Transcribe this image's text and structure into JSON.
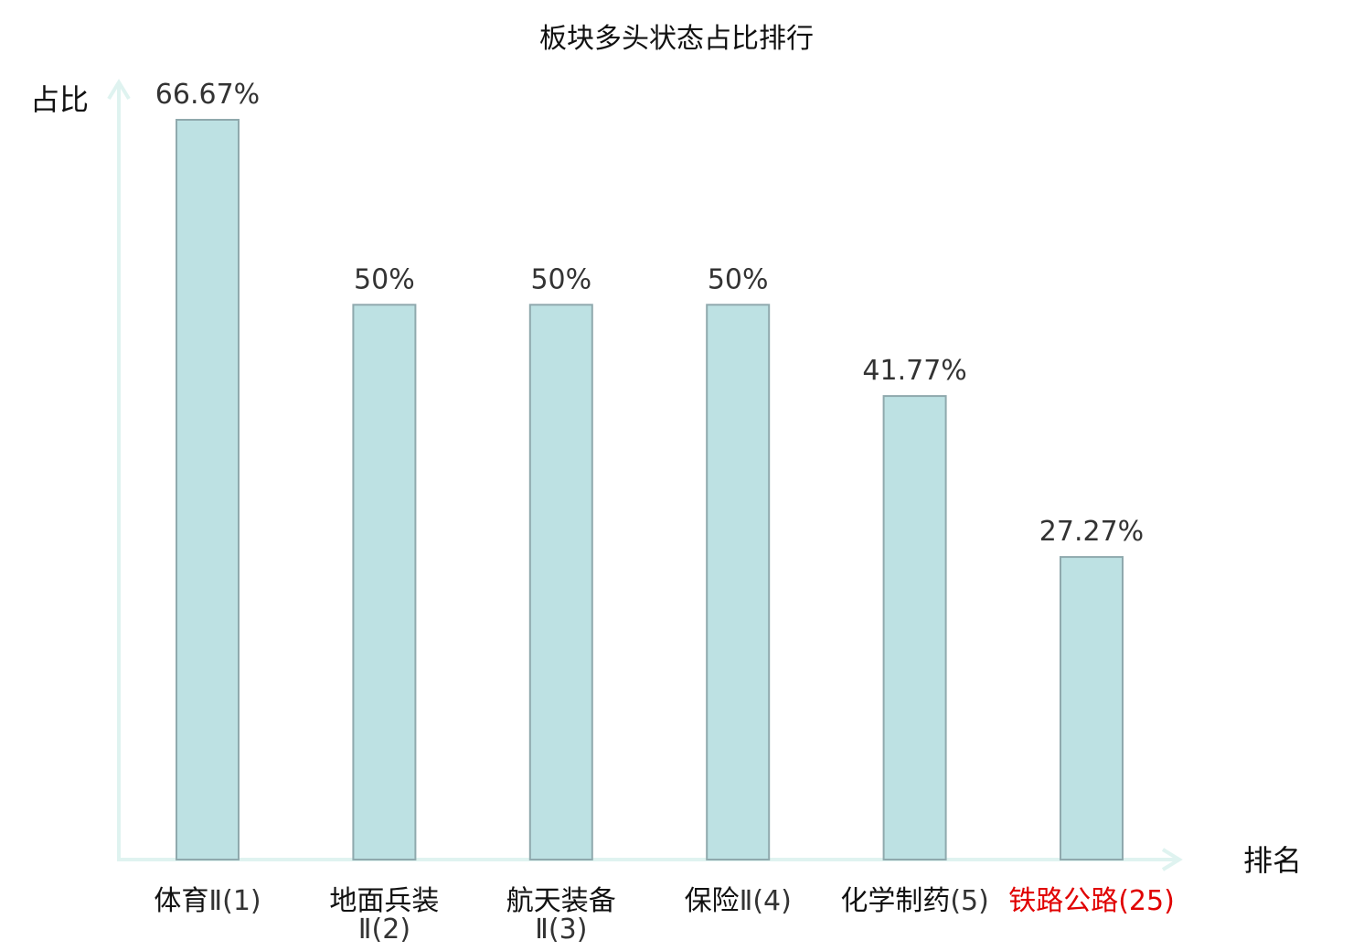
{
  "chart_data": {
    "type": "bar",
    "title": "板块多头状态占比排行",
    "ylabel": "占比",
    "xlabel": "排名",
    "ylim": [
      0,
      66.67
    ],
    "grid": false,
    "legend": "none",
    "colors": {
      "bar_fill": "#bde1e3",
      "bar_stroke": "#8fa9ad",
      "axis": "#dff3f0",
      "highlight": "#e00000"
    },
    "value_labels": [
      "66.67%",
      "50%",
      "50%",
      "50%",
      "41.77%",
      "27.27%"
    ],
    "categories": [
      {
        "line1_main": "体育",
        "line1_suffix": "Ⅱ(1)",
        "line2": "",
        "highlight": false
      },
      {
        "line1_main": "地面兵装",
        "line1_suffix": "",
        "line2": "Ⅱ(2)",
        "highlight": false
      },
      {
        "line1_main": "航天装备",
        "line1_suffix": "",
        "line2": "Ⅱ(3)",
        "highlight": false
      },
      {
        "line1_main": "保险",
        "line1_suffix": "Ⅱ(4)",
        "line2": "",
        "highlight": false
      },
      {
        "line1_main": "化学制药",
        "line1_suffix": "(5)",
        "line2": "",
        "highlight": false
      },
      {
        "line1_main": "铁路公路",
        "line1_suffix": "(25)",
        "line2": "",
        "highlight": true
      }
    ],
    "values": [
      66.67,
      50,
      50,
      50,
      41.77,
      27.27
    ]
  }
}
